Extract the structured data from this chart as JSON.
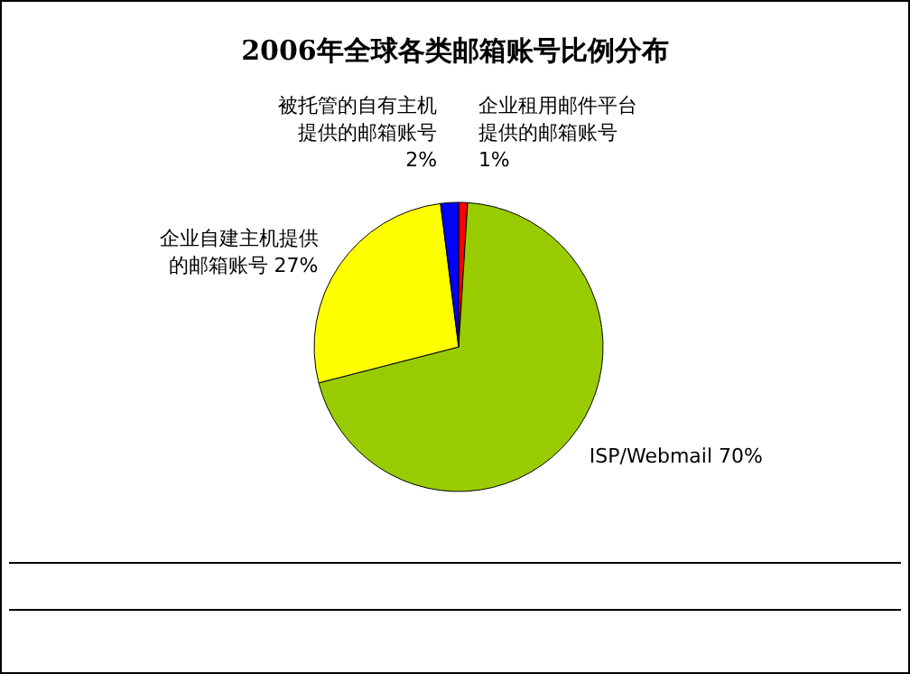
{
  "chart_data": {
    "type": "pie",
    "title": "2006年全球各类邮箱账号比例分布",
    "categories": [
      "企业租用邮件平台提供的邮箱账号",
      "ISP/Webmail",
      "企业自建主机提供的邮箱账号",
      "被托管的自有主机提供的邮箱账号"
    ],
    "values": [
      1,
      70,
      27,
      2
    ],
    "colors": [
      "#ff0000",
      "#99cc00",
      "#ffff00",
      "#0000ff"
    ],
    "value_labels": [
      "1%",
      "70%",
      "27%",
      "2%"
    ]
  }
}
